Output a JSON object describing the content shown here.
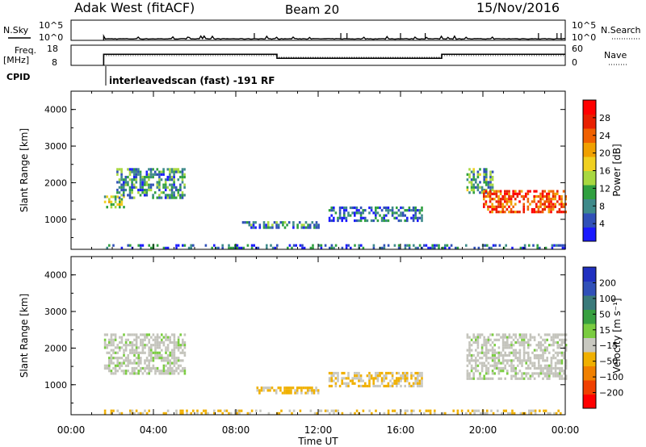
{
  "header": {
    "station": "Adak West (fitACF)",
    "beam": "Beam 20",
    "date": "15/Nov/2016"
  },
  "top_panels": {
    "nsky_label": "N.Sky",
    "nsky_ticks": [
      "10^5",
      "10^0"
    ],
    "nsearch_ticks": [
      "10^5",
      "10^0"
    ],
    "nsearch_label": "N.Search",
    "freq_label": "Freq.",
    "freq_unit": "[MHz]",
    "freq_ticks": [
      "18",
      "8"
    ],
    "nave_ticks": [
      "60",
      "0"
    ],
    "nave_label": "Nave",
    "cpid_label": "CPID",
    "cpid_text": "interleavedscan (fast) -191 RF"
  },
  "colors": {
    "power_scale": [
      "#1a1aff",
      "#3050b8",
      "#3e8a8a",
      "#30a040",
      "#a8d840",
      "#f0d020",
      "#f0a000",
      "#f06000",
      "#e82000",
      "#ff0000"
    ],
    "velocity_scale": [
      "#2030c0",
      "#3050b8",
      "#3a7a7a",
      "#38a040",
      "#7acc40",
      "#c8c8c0",
      "#f0b000",
      "#f08000",
      "#f04000",
      "#ff0000"
    ],
    "nonscatter_gray": "#c4c4bc"
  },
  "chart_data": [
    {
      "type": "line",
      "name": "N.Sky / N.Search",
      "x": [
        "01:35",
        "02:00",
        "06:00",
        "08:00",
        "12:00",
        "16:00",
        "20:00",
        "00:00"
      ],
      "y_log10": [
        0.3,
        0.3,
        0.3,
        0.3,
        0.3,
        0.3,
        0.3,
        0.3
      ],
      "ylim_log10": [
        0,
        5
      ]
    },
    {
      "type": "line",
      "name": "Freq / Nave",
      "x": [
        "01:35",
        "10:00",
        "18:00",
        "00:00"
      ],
      "freq_mhz": [
        13.5,
        11.5,
        13.5,
        13.5
      ],
      "nave": [
        29,
        24,
        29,
        29
      ],
      "freq_ylim": [
        8,
        18
      ],
      "nave_ylim": [
        0,
        60
      ]
    },
    {
      "type": "heatmap",
      "title": "Power",
      "xlabel": "Time UT",
      "ylabel": "Slant Range [km]",
      "xlim_hours": [
        0,
        24
      ],
      "ylim_km": [
        180,
        4500
      ],
      "x_ticks": [
        "00:00",
        "04:00",
        "08:00",
        "12:00",
        "16:00",
        "20:00",
        "00:00"
      ],
      "y_ticks": [
        "1000",
        "2000",
        "3000",
        "4000"
      ],
      "colorbar_label": "Power [dB]",
      "colorbar_ticks": [
        "4",
        "8",
        "12",
        "16",
        "20",
        "24",
        "28"
      ],
      "colorbar_range": [
        0,
        30
      ],
      "regions": [
        {
          "t": [
            1.6,
            2.6
          ],
          "r": [
            1300,
            1650
          ],
          "power": 14
        },
        {
          "t": [
            2.2,
            5.5
          ],
          "r": [
            1600,
            2400
          ],
          "power": 8
        },
        {
          "t": [
            8.3,
            12.0
          ],
          "r": [
            750,
            950
          ],
          "power": 8
        },
        {
          "t": [
            12.5,
            17.0
          ],
          "r": [
            950,
            1350
          ],
          "power": 6
        },
        {
          "t": [
            19.2,
            20.5
          ],
          "r": [
            1700,
            2400
          ],
          "power": 10
        },
        {
          "t": [
            20.0,
            24.0
          ],
          "r": [
            1200,
            1800
          ],
          "power": 24
        },
        {
          "t": [
            1.6,
            24.0
          ],
          "r": [
            180,
            320
          ],
          "power": 6
        }
      ]
    },
    {
      "type": "heatmap",
      "title": "Velocity",
      "xlabel": "Time UT",
      "ylabel": "Slant Range [km]",
      "xlim_hours": [
        0,
        24
      ],
      "ylim_km": [
        180,
        4500
      ],
      "x_ticks": [
        "00:00",
        "04:00",
        "08:00",
        "12:00",
        "16:00",
        "20:00",
        "00:00"
      ],
      "y_ticks": [
        "1000",
        "2000",
        "3000",
        "4000"
      ],
      "colorbar_label": "Velocity [m s⁻¹]",
      "colorbar_ticks": [
        "200",
        "100",
        "50",
        "15",
        "−15",
        "−50",
        "−100",
        "−200"
      ],
      "regions": [
        {
          "t": [
            1.6,
            5.5
          ],
          "r": [
            1300,
            2400
          ],
          "velocity": 0
        },
        {
          "t": [
            9.0,
            12.0
          ],
          "r": [
            750,
            950
          ],
          "velocity": -50
        },
        {
          "t": [
            12.5,
            17.0
          ],
          "r": [
            950,
            1350
          ],
          "velocity": -40
        },
        {
          "t": [
            19.2,
            24.0
          ],
          "r": [
            1200,
            2400
          ],
          "velocity": 0
        },
        {
          "t": [
            1.6,
            24.0
          ],
          "r": [
            180,
            320
          ],
          "velocity": -40
        }
      ]
    }
  ]
}
